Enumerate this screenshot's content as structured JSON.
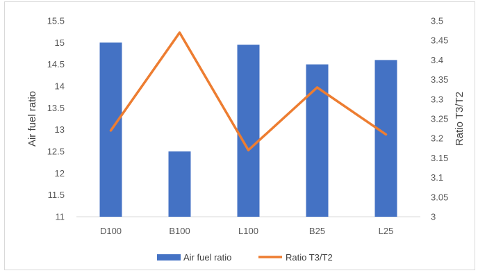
{
  "chart_data": {
    "type": "bar",
    "categories": [
      "D100",
      "B100",
      "L100",
      "B25",
      "L25"
    ],
    "series": [
      {
        "name": "Air fuel ratio",
        "type": "bar",
        "axis": "left",
        "values": [
          15.0,
          12.5,
          14.95,
          14.5,
          14.6
        ],
        "color": "#4472c4"
      },
      {
        "name": "Ratio T3/T2",
        "type": "line",
        "axis": "right",
        "values": [
          3.22,
          3.47,
          3.17,
          3.33,
          3.21
        ],
        "color": "#ed7d31"
      }
    ],
    "ylabel": "Air fuel ratio",
    "y2label": "Ratio T3/T2",
    "ylim": [
      11,
      15.5
    ],
    "y2lim": [
      3,
      3.5
    ],
    "yticks": [
      "11",
      "11.5",
      "12",
      "12.5",
      "13",
      "13.5",
      "14",
      "14.5",
      "15",
      "15.5"
    ],
    "y2ticks": [
      "3",
      "3.05",
      "3.1",
      "3.15",
      "3.2",
      "3.25",
      "3.3",
      "3.35",
      "3.4",
      "3.45",
      "3.5"
    ],
    "grid": false,
    "legend": "bottom"
  }
}
